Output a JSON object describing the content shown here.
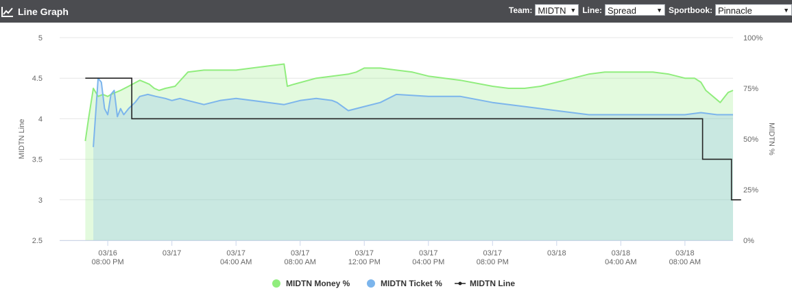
{
  "header": {
    "title": "Line Graph",
    "icon": "line-chart-icon",
    "team_label": "Team:",
    "team_value": "MIDTN",
    "line_label": "Line:",
    "line_value": "Spread",
    "sportsbook_label": "Sportbook:",
    "sportsbook_value": "Pinnacle"
  },
  "chart_data": {
    "type": "line",
    "ylabel_left": "MIDTN Line",
    "ylabel_right": "MIDTN %",
    "ylim_left": [
      2.5,
      5
    ],
    "ylim_right": [
      0,
      100
    ],
    "yticks_left": [
      "2.5",
      "3",
      "3.5",
      "4",
      "4.5",
      "5"
    ],
    "yticks_right": [
      "0%",
      "25%",
      "50%",
      "75%",
      "100%"
    ],
    "xlim": [
      -3,
      39
    ],
    "xtick_positions": [
      0,
      4,
      8,
      12,
      16,
      20,
      24,
      28,
      32,
      36
    ],
    "xticks": [
      [
        "03/16",
        "08:00 PM"
      ],
      [
        "03/17",
        ""
      ],
      [
        "03/17",
        "04:00 AM"
      ],
      [
        "03/17",
        "08:00 AM"
      ],
      [
        "03/17",
        "12:00 PM"
      ],
      [
        "03/17",
        "04:00 PM"
      ],
      [
        "03/17",
        "08:00 PM"
      ],
      [
        "03/18",
        ""
      ],
      [
        "03/18",
        "04:00 AM"
      ],
      [
        "03/18",
        "08:00 AM"
      ]
    ],
    "grid": true,
    "legend_position": "bottom-center",
    "series": [
      {
        "name": "MIDTN Money %",
        "axis": "right",
        "style": "area",
        "color": "#90ed7d",
        "x": [
          -1.4,
          -1.2,
          -0.9,
          -0.6,
          -0.3,
          0,
          0.2,
          0.5,
          0.8,
          1.3,
          2.0,
          2.3,
          2.6,
          2.9,
          3.2,
          3.6,
          4.2,
          5.0,
          6.0,
          8.0,
          10.0,
          11.0,
          11.2,
          11.6,
          13.0,
          14.0,
          15.0,
          15.5,
          16.0,
          17.0,
          18.0,
          19.0,
          20.0,
          21.0,
          22.0,
          24.0,
          25.0,
          26.0,
          27.0,
          28.0,
          29.0,
          30.0,
          31.0,
          32.0,
          34.0,
          35.0,
          36.0,
          36.6,
          37.0,
          37.3,
          37.6,
          37.9,
          38.2,
          38.5,
          38.7,
          39.0
        ],
        "values": [
          49,
          60,
          75,
          71,
          72,
          71,
          72,
          73,
          74,
          76,
          79,
          78,
          77,
          75,
          74,
          75,
          76,
          83,
          84,
          84,
          86,
          87,
          76,
          77,
          80,
          81,
          82,
          83,
          85,
          85,
          84,
          83,
          81,
          80,
          79,
          76,
          75,
          75,
          76,
          78,
          80,
          82,
          83,
          83,
          83,
          82,
          80,
          80,
          78,
          74,
          72,
          70,
          68,
          71,
          73,
          74
        ]
      },
      {
        "name": "MIDTN Ticket %",
        "axis": "right",
        "style": "area",
        "color": "#7cb5ec",
        "x": [
          -0.9,
          -0.6,
          -0.4,
          -0.2,
          0,
          0.2,
          0.4,
          0.6,
          0.8,
          1.0,
          1.3,
          1.7,
          2.0,
          2.5,
          3.0,
          3.6,
          4.0,
          4.5,
          5.0,
          6.0,
          7.0,
          8.0,
          10.0,
          11.0,
          12.0,
          13.0,
          14.0,
          14.3,
          15.0,
          16.0,
          17.0,
          18.0,
          20.0,
          22.0,
          24.0,
          26.0,
          28.0,
          30.0,
          32.0,
          34.0,
          36.0,
          37.0,
          38.0,
          39.0
        ],
        "values": [
          46,
          80,
          78,
          65,
          62,
          72,
          74,
          61,
          65,
          62,
          65,
          68,
          71,
          72,
          71,
          70,
          69,
          70,
          69,
          67,
          69,
          70,
          68,
          67,
          69,
          70,
          69,
          68,
          64,
          66,
          68,
          72,
          71,
          71,
          68,
          66,
          64,
          62,
          62,
          62,
          62,
          63,
          62,
          62
        ]
      },
      {
        "name": "MIDTN Line",
        "axis": "left",
        "style": "step",
        "color": "#222222",
        "x": [
          -1.4,
          1.5,
          1.5,
          37.1,
          37.1,
          38.9,
          38.9,
          39.5
        ],
        "values": [
          4.5,
          4.5,
          4.0,
          4.0,
          3.5,
          3.5,
          3.0,
          3.0
        ]
      }
    ]
  }
}
